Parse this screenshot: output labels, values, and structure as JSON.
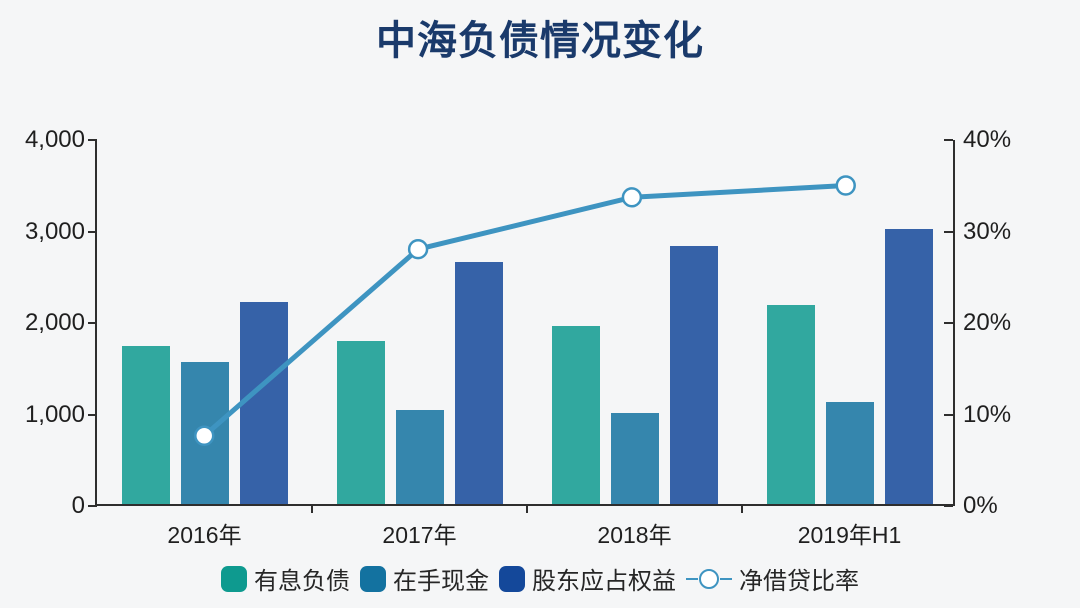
{
  "title": "中海负债情况变化",
  "colors": {
    "background": "#f5f6f7",
    "title": "#1a3a6b",
    "axis": "#2e2e2e",
    "tick_text": "#1f1f1f"
  },
  "chart_data": {
    "type": "bar",
    "subtype": "grouped-bars-with-line",
    "title": "中海负债情况变化",
    "categories": [
      "2016年",
      "2017年",
      "2018年",
      "2019年H1"
    ],
    "bar_series": [
      {
        "name": "有息负债",
        "color": "#0E9A8F",
        "values": [
          1730,
          1780,
          1950,
          2170
        ]
      },
      {
        "name": "在手现金",
        "color": "#1372A0",
        "values": [
          1550,
          1030,
          990,
          1110
        ]
      },
      {
        "name": "股东应占权益",
        "color": "#14489A",
        "values": [
          2210,
          2640,
          2820,
          3010
        ]
      }
    ],
    "line_series": {
      "name": "净借贷比率",
      "color": "#3E94C1",
      "marker": "open-circle",
      "values_pct": [
        7.5,
        28.0,
        33.7,
        35.0
      ]
    },
    "left_axis": {
      "min": 0,
      "max": 4000,
      "step": 1000,
      "tick_labels": [
        "0",
        "1,000",
        "2,000",
        "3,000",
        "4,000"
      ]
    },
    "right_axis": {
      "min": 0,
      "max": 40,
      "step": 10,
      "tick_labels": [
        "0%",
        "10%",
        "20%",
        "30%",
        "40%"
      ]
    },
    "grid": false,
    "legend_position": "bottom"
  }
}
